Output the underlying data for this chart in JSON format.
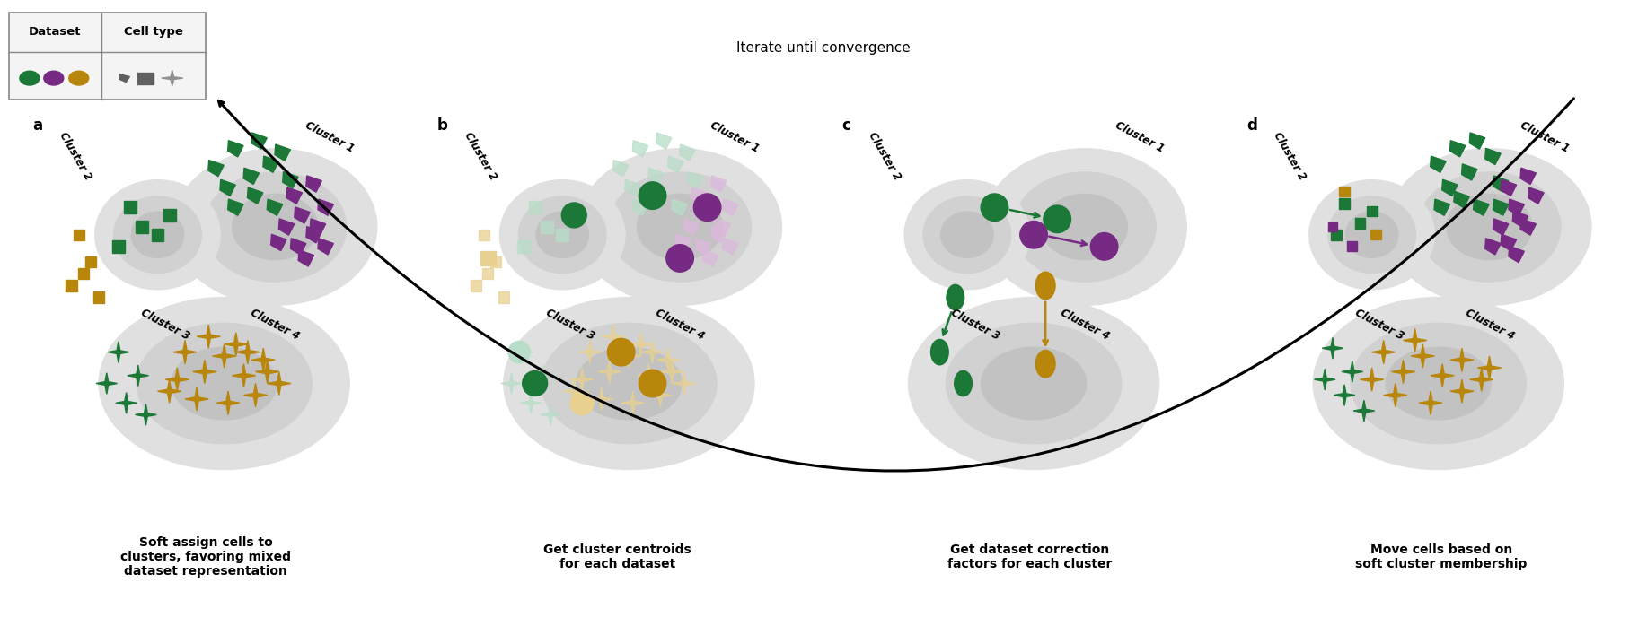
{
  "colors": {
    "green": "#1b7837",
    "purple": "#762a83",
    "gold": "#b8860b",
    "light_green": "#b8ddc8",
    "light_purple": "#ddb8dd",
    "light_gold": "#e8d090",
    "panel_bg": "#ffffff",
    "gray_dark": "#606060",
    "gray_mid": "#909090",
    "gray_light": "#c0c0c0"
  },
  "panel_labels": [
    "a",
    "b",
    "c",
    "d"
  ],
  "captions": [
    "Soft assign cells to\nclusters, favoring mixed\ndataset representation",
    "Get cluster centroids\nfor each dataset",
    "Get dataset correction\nfactors for each cluster",
    "Move cells based on\nsoft cluster membership"
  ],
  "iterate_text": "Iterate until convergence",
  "legend_dataset": "Dataset",
  "legend_celltype": "Cell type"
}
